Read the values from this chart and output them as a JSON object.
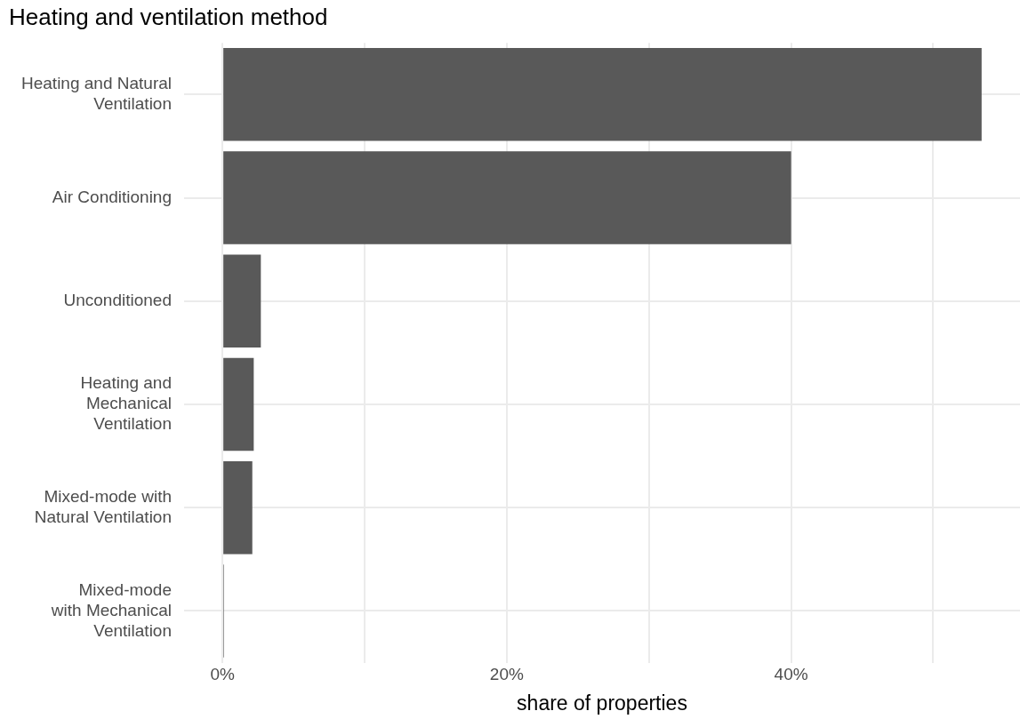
{
  "chart_data": {
    "type": "bar",
    "orientation": "horizontal",
    "title": "Heating and ventilation method",
    "xlabel": "share of properties",
    "categories": [
      "Heating and Natural\nVentilation",
      "Air Conditioning",
      "Unconditioned",
      "Heating and\nMechanical\nVentilation",
      "Mixed-mode with\nNatural Ventilation",
      "Mixed-mode\nwith Mechanical\nVentilation"
    ],
    "values": [
      53.4,
      40.0,
      2.7,
      2.2,
      2.1,
      0.1
    ],
    "color": "#595959",
    "xlim": [
      -2.7,
      56.1
    ],
    "xticks": [
      {
        "value": 0,
        "label": "0%"
      },
      {
        "value": 10,
        "label": null
      },
      {
        "value": 20,
        "label": "20%"
      },
      {
        "value": 30,
        "label": null
      },
      {
        "value": 40,
        "label": "40%"
      },
      {
        "value": 50,
        "label": null
      }
    ],
    "grid": true,
    "legend": false
  }
}
